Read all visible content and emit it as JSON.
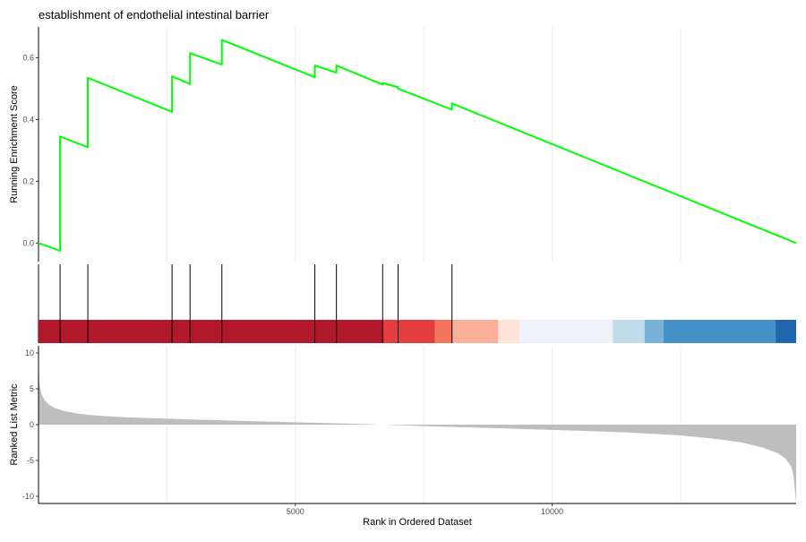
{
  "chart_data": [
    {
      "panel": "running-enrichment-score",
      "type": "line",
      "title": "establishment of endothelial intestinal barrier",
      "xlabel": "",
      "ylabel": "Running Enrichment Score",
      "xlim": [
        0,
        14750
      ],
      "ylim": [
        -0.06,
        0.7
      ],
      "yticks": [
        0.0,
        0.2,
        0.4,
        0.6
      ],
      "ytick_labels": [
        "0.0",
        "0.2",
        "0.4",
        "0.6"
      ],
      "xgrid": [
        2500,
        5000,
        7500,
        10000,
        12500
      ],
      "grid": "vertical-only",
      "line_color": "#00ff00",
      "x": [
        0,
        420,
        420,
        960,
        960,
        2600,
        2600,
        2950,
        2950,
        3570,
        3570,
        5380,
        5380,
        5800,
        5800,
        6700,
        6700,
        7000,
        7000,
        8050,
        8050,
        14750
      ],
      "y": [
        0.0,
        -0.025,
        0.345,
        0.31,
        0.535,
        0.425,
        0.54,
        0.515,
        0.615,
        0.578,
        0.658,
        0.537,
        0.575,
        0.552,
        0.575,
        0.513,
        0.518,
        0.505,
        0.5,
        0.432,
        0.452,
        0.0
      ]
    },
    {
      "panel": "gene-hits-and-ranking-bar",
      "type": "barcode",
      "hits": [
        420,
        960,
        2600,
        2950,
        3570,
        5380,
        5800,
        6700,
        7000,
        8050
      ],
      "bands": [
        {
          "from": 0,
          "to": 6700,
          "color": "#b2182b"
        },
        {
          "from": 6700,
          "to": 7720,
          "color": "#e33d3d"
        },
        {
          "from": 7720,
          "to": 8050,
          "color": "#f4745c"
        },
        {
          "from": 8050,
          "to": 8950,
          "color": "#fbb09a"
        },
        {
          "from": 8950,
          "to": 9370,
          "color": "#fde3da"
        },
        {
          "from": 9370,
          "to": 11180,
          "color": "#eef3fb"
        },
        {
          "from": 11180,
          "to": 11800,
          "color": "#c2dbea"
        },
        {
          "from": 11800,
          "to": 12170,
          "color": "#78b1d8"
        },
        {
          "from": 12170,
          "to": 14350,
          "color": "#4590c7"
        },
        {
          "from": 14350,
          "to": 14750,
          "color": "#2166ac"
        }
      ]
    },
    {
      "panel": "ranked-list-metric",
      "type": "area",
      "xlabel": "Rank in Ordered Dataset",
      "ylabel": "Ranked List Metric",
      "xlim": [
        0,
        14750
      ],
      "ylim": [
        -11,
        11
      ],
      "yticks": [
        10,
        5,
        0,
        -5,
        -10
      ],
      "ytick_labels": [
        "10",
        "5",
        "0",
        "-5",
        "-10"
      ],
      "xticks": [
        5000,
        10000
      ],
      "xtick_labels": [
        "5000",
        "10000"
      ],
      "fill_color": "#bebebe",
      "x": [
        0,
        20,
        60,
        120,
        200,
        320,
        500,
        750,
        1000,
        1500,
        2000,
        3000,
        4000,
        5000,
        6000,
        6700,
        7500,
        8500,
        9500,
        10500,
        11500,
        12500,
        13200,
        13700,
        14100,
        14400,
        14550,
        14650,
        14700,
        14750
      ],
      "y": [
        8.0,
        5.5,
        4.2,
        3.4,
        2.8,
        2.3,
        1.9,
        1.55,
        1.35,
        1.1,
        0.95,
        0.72,
        0.52,
        0.33,
        0.15,
        0.0,
        -0.2,
        -0.4,
        -0.62,
        -0.85,
        -1.1,
        -1.5,
        -2.0,
        -2.5,
        -3.2,
        -4.0,
        -4.8,
        -5.8,
        -7.2,
        -11.0
      ]
    }
  ]
}
